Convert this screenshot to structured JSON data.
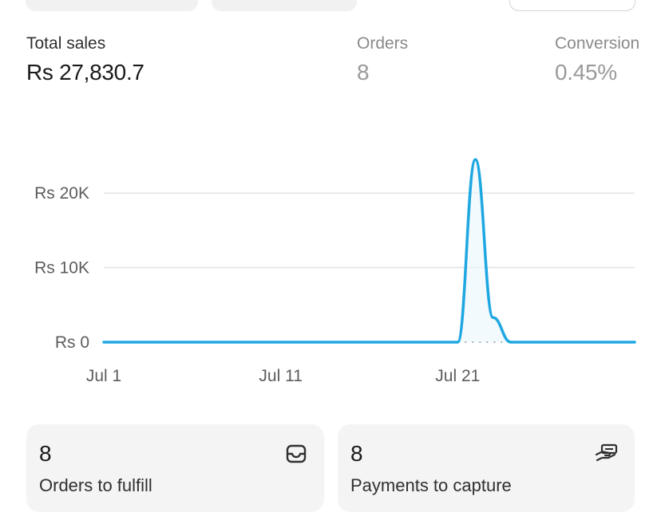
{
  "metrics": {
    "total_sales": {
      "label": "Total sales",
      "value": "Rs 27,830.7"
    },
    "orders": {
      "label": "Orders",
      "value": "8"
    },
    "conversion": {
      "label": "Conversion",
      "value": "0.45%"
    }
  },
  "chart_data": {
    "type": "line",
    "title": "",
    "xlabel": "",
    "ylabel": "",
    "x_tick_labels": [
      "Jul 1",
      "Jul 11",
      "Jul 21"
    ],
    "y_tick_labels": [
      "Rs 0",
      "Rs 10K",
      "Rs 20K"
    ],
    "y_ticks": [
      0,
      10000,
      20000
    ],
    "ylim": [
      0,
      26000
    ],
    "x_days": [
      1,
      31
    ],
    "grid": true,
    "legend": "none",
    "colors": {
      "series": "#1ea7e1",
      "grid": "#e3e3e3"
    },
    "series": [
      {
        "x": [
          1,
          2,
          3,
          4,
          5,
          6,
          7,
          8,
          9,
          10,
          11,
          12,
          13,
          14,
          15,
          16,
          17,
          18,
          19,
          20,
          21,
          22,
          23,
          24,
          25,
          26,
          27,
          28,
          29,
          30,
          31
        ],
        "values": [
          0,
          0,
          0,
          0,
          0,
          0,
          0,
          0,
          0,
          0,
          0,
          0,
          0,
          0,
          0,
          0,
          0,
          0,
          0,
          0,
          0,
          24500,
          3300,
          0,
          0,
          0,
          0,
          0,
          0,
          0,
          0
        ]
      }
    ]
  },
  "cards": [
    {
      "value": "8",
      "label": "Orders to fulfill",
      "icon": "inbox-icon"
    },
    {
      "value": "8",
      "label": "Payments to capture",
      "icon": "hand-cash-icon"
    }
  ]
}
